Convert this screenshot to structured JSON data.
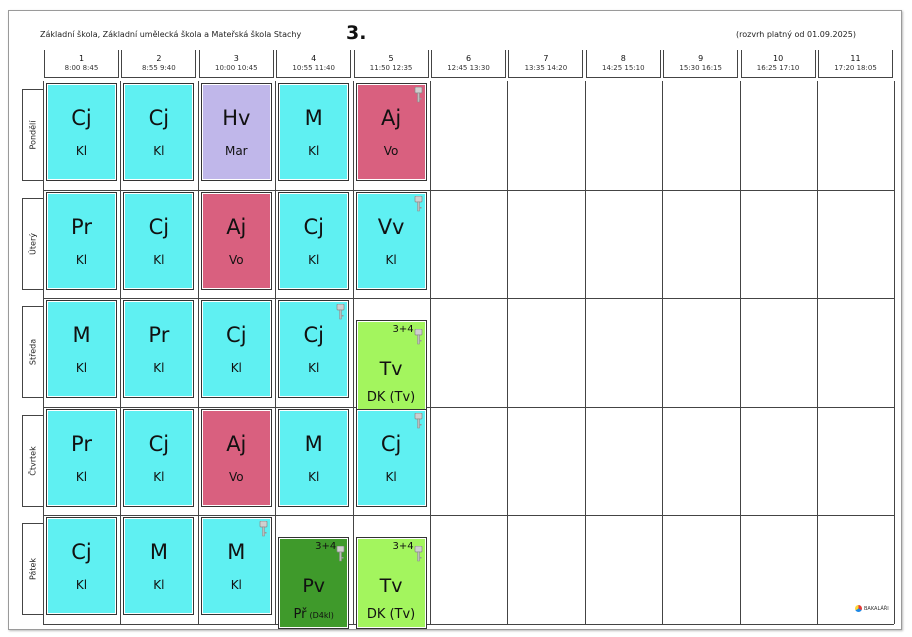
{
  "header": {
    "school": "Základní škola, Základní umělecká škola a Mateřská škola Stachy",
    "class_name": "3.",
    "validity": "(rozvrh platný od 01.09.2025)"
  },
  "periods": [
    {
      "num": "1",
      "time": "8:00  8:45"
    },
    {
      "num": "2",
      "time": "8:55  9:40"
    },
    {
      "num": "3",
      "time": "10:00 10:45"
    },
    {
      "num": "4",
      "time": "10:55 11:40"
    },
    {
      "num": "5",
      "time": "11:50 12:35"
    },
    {
      "num": "6",
      "time": "12:45 13:30"
    },
    {
      "num": "7",
      "time": "13:35 14:20"
    },
    {
      "num": "8",
      "time": "14:25 15:10"
    },
    {
      "num": "9",
      "time": "15:30 16:15"
    },
    {
      "num": "10",
      "time": "16:25 17:10"
    },
    {
      "num": "11",
      "time": "17:20 18:05"
    }
  ],
  "days": [
    {
      "label": "Pondělí",
      "lessons": [
        {
          "subject": "Cj",
          "teacher": "Kl",
          "color": "#5ff0f2"
        },
        {
          "subject": "Cj",
          "teacher": "Kl",
          "color": "#5ff0f2"
        },
        {
          "subject": "Hv",
          "teacher": "Mar",
          "color": "#c0b7ea"
        },
        {
          "subject": "M",
          "teacher": "Kl",
          "color": "#5ff0f2"
        },
        {
          "subject": "Aj",
          "teacher": "Vo",
          "color": "#d9607f",
          "key": true
        }
      ]
    },
    {
      "label": "Úterý",
      "lessons": [
        {
          "subject": "Pr",
          "teacher": "Kl",
          "color": "#5ff0f2"
        },
        {
          "subject": "Cj",
          "teacher": "Kl",
          "color": "#5ff0f2"
        },
        {
          "subject": "Aj",
          "teacher": "Vo",
          "color": "#d9607f"
        },
        {
          "subject": "Cj",
          "teacher": "Kl",
          "color": "#5ff0f2"
        },
        {
          "subject": "Vv",
          "teacher": "Kl",
          "color": "#5ff0f2",
          "key": true
        }
      ]
    },
    {
      "label": "Středa",
      "lessons": [
        {
          "subject": "M",
          "teacher": "Kl",
          "color": "#5ff0f2"
        },
        {
          "subject": "Pr",
          "teacher": "Kl",
          "color": "#5ff0f2"
        },
        {
          "subject": "Cj",
          "teacher": "Kl",
          "color": "#5ff0f2"
        },
        {
          "subject": "Cj",
          "teacher": "Kl",
          "color": "#5ff0f2",
          "key": true
        },
        {
          "subject": "Tv",
          "teacher": "DK",
          "room": "(Tv)",
          "group": "3+4",
          "color": "#a3f55e",
          "key": true,
          "half": true
        }
      ]
    },
    {
      "label": "Čtvrtek",
      "lessons": [
        {
          "subject": "Pr",
          "teacher": "Kl",
          "color": "#5ff0f2"
        },
        {
          "subject": "Cj",
          "teacher": "Kl",
          "color": "#5ff0f2"
        },
        {
          "subject": "Aj",
          "teacher": "Vo",
          "color": "#d9607f"
        },
        {
          "subject": "M",
          "teacher": "Kl",
          "color": "#5ff0f2"
        },
        {
          "subject": "Cj",
          "teacher": "Kl",
          "color": "#5ff0f2",
          "key": true
        }
      ]
    },
    {
      "label": "Pátek",
      "lessons": [
        {
          "subject": "Cj",
          "teacher": "Kl",
          "color": "#5ff0f2"
        },
        {
          "subject": "M",
          "teacher": "Kl",
          "color": "#5ff0f2"
        },
        {
          "subject": "M",
          "teacher": "Kl",
          "color": "#5ff0f2",
          "key": true
        },
        {
          "subject": "Pv",
          "teacher": "Př",
          "room": "(D4kl)",
          "group": "3+4",
          "color": "#3f9a2b",
          "key": true,
          "half": true
        },
        {
          "subject": "Tv",
          "teacher": "DK",
          "room": "(Tv)",
          "group": "3+4",
          "color": "#a3f55e",
          "key": true,
          "half": true
        }
      ]
    }
  ],
  "footer": {
    "logo_text": "BAKALÁŘI"
  }
}
